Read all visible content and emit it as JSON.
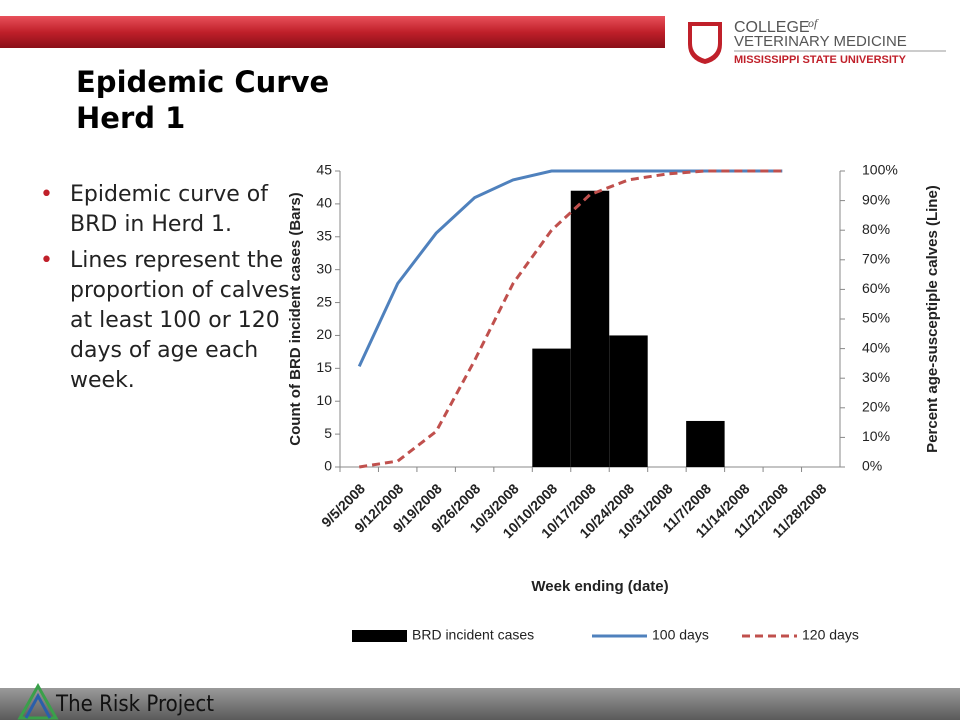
{
  "header": {
    "title": [
      "Epidemic Curve",
      "Herd 1"
    ],
    "logo": {
      "college": "COLLEGE",
      "of": "of",
      "school": "VETERINARY MEDICINE",
      "university": "MISSISSIPPI STATE UNIVERSITY"
    }
  },
  "bullets": [
    "Epidemic curve of BRD in Herd 1.",
    "Lines represent the proportion of calves at least 100 or 120 days of age each week."
  ],
  "footer": {
    "brand": "The Risk Project"
  },
  "chart_data": {
    "type": "bar",
    "categories": [
      "9/5/2008",
      "9/12/2008",
      "9/19/2008",
      "9/26/2008",
      "10/3/2008",
      "10/10/2008",
      "10/17/2008",
      "10/24/2008",
      "10/31/2008",
      "11/7/2008",
      "11/14/2008",
      "11/21/2008",
      "11/28/2008"
    ],
    "x_label": "Week ending (date)",
    "y_label": "Count of BRD incident cases (Bars)",
    "y2_label": "Percent age-susceptiple calves (Line)",
    "ylim": [
      0,
      45
    ],
    "yticks": [
      0,
      5,
      10,
      15,
      20,
      25,
      30,
      35,
      40,
      45
    ],
    "y2lim": [
      0,
      100
    ],
    "y2ticks": [
      {
        "value": 0,
        "label": "0%"
      },
      {
        "value": 10,
        "label": "10%"
      },
      {
        "value": 20,
        "label": "20%"
      },
      {
        "value": 30,
        "label": "30%"
      },
      {
        "value": 40,
        "label": "40%"
      },
      {
        "value": 50,
        "label": "50%"
      },
      {
        "value": 60,
        "label": "60%"
      },
      {
        "value": 70,
        "label": "70%"
      },
      {
        "value": 80,
        "label": "80%"
      },
      {
        "value": 90,
        "label": "90%"
      },
      {
        "value": 100,
        "label": "100%"
      }
    ],
    "series": [
      {
        "name": "BRD incident cases",
        "type": "bar",
        "color": "#000000",
        "values": [
          0,
          0,
          0,
          0,
          0,
          18,
          42,
          20,
          0,
          7,
          0,
          0,
          0
        ]
      },
      {
        "name": "100 days",
        "type": "line",
        "axis": "y2",
        "color": "#4f81bd",
        "values": [
          34,
          62,
          79,
          91,
          97,
          100,
          100,
          100,
          100,
          100,
          100,
          100,
          null
        ]
      },
      {
        "name": "120 days",
        "type": "line",
        "axis": "y2",
        "color": "#c0504d",
        "dashed": true,
        "values": [
          0,
          2,
          12,
          36,
          62,
          80,
          92,
          97,
          99,
          100,
          100,
          100,
          null
        ]
      }
    ]
  }
}
